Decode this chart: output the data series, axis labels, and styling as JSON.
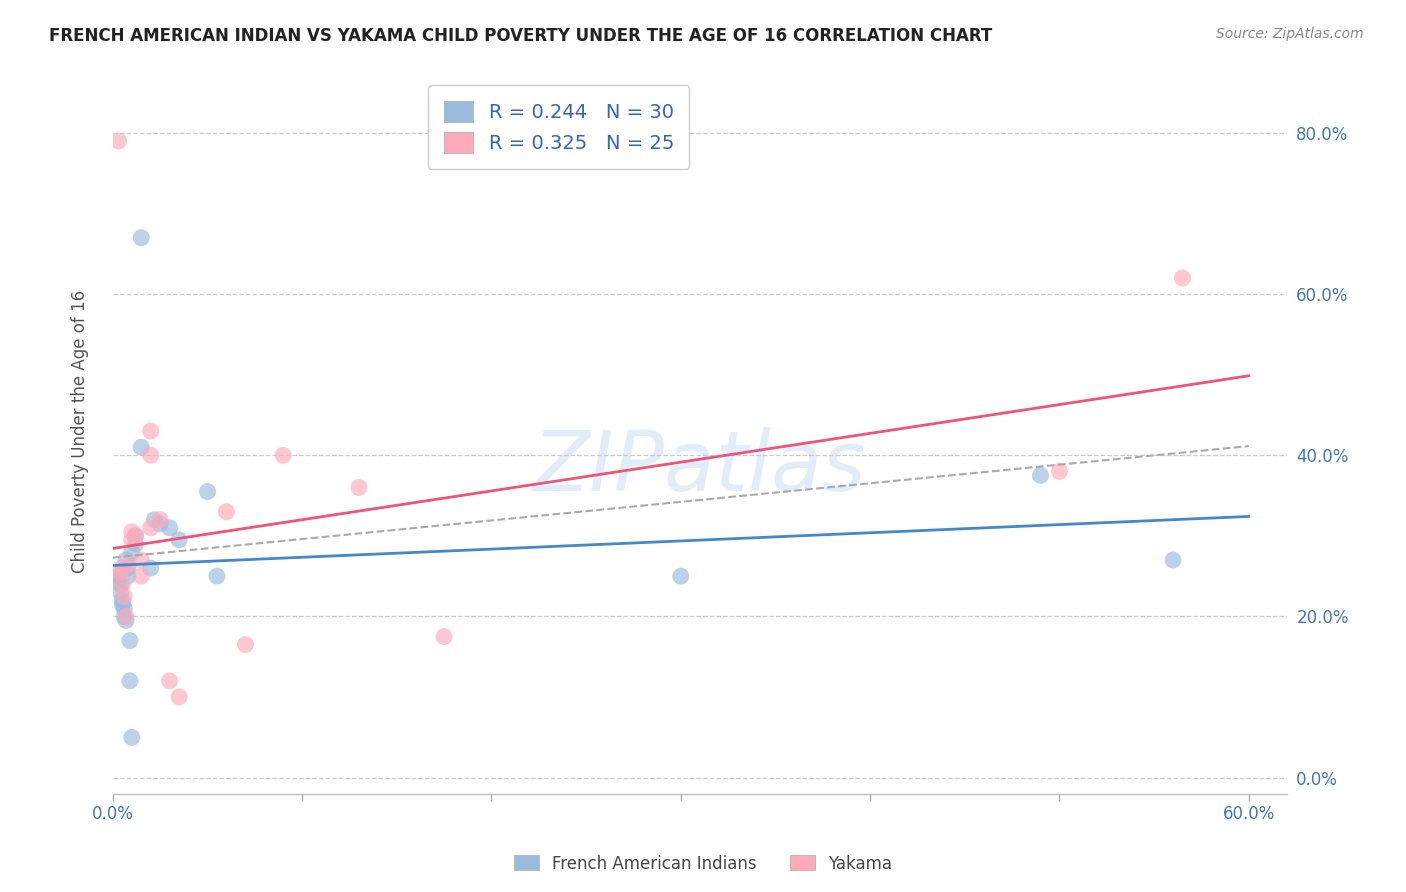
{
  "title": "FRENCH AMERICAN INDIAN VS YAKAMA CHILD POVERTY UNDER THE AGE OF 16 CORRELATION CHART",
  "source": "Source: ZipAtlas.com",
  "ylabel": "Child Poverty Under the Age of 16",
  "legend_label1": "French American Indians",
  "legend_label2": "Yakama",
  "R1": 0.244,
  "N1": 30,
  "R2": 0.325,
  "N2": 25,
  "color_blue": "#99BBDD",
  "color_pink": "#FFAABB",
  "line_color_blue": "#4488CC",
  "line_color_pink": "#EE5577",
  "watermark": "ZIPatlas",
  "xlim": [
    0.0,
    0.62
  ],
  "ylim": [
    -0.02,
    0.88
  ],
  "x_ticks": [
    0.0,
    0.6
  ],
  "x_tick_labels": [
    "0.0%",
    "60.0%"
  ],
  "y_ticks": [
    0.0,
    0.2,
    0.4,
    0.6,
    0.8
  ],
  "y_tick_labels": [
    "0.0%",
    "20.0%",
    "40.0%",
    "60.0%",
    "80.0%"
  ],
  "blue_x": [
    0.003,
    0.003,
    0.004,
    0.004,
    0.005,
    0.005,
    0.006,
    0.006,
    0.007,
    0.007,
    0.008,
    0.008,
    0.009,
    0.009,
    0.01,
    0.01,
    0.012,
    0.012,
    0.015,
    0.015,
    0.02,
    0.022,
    0.025,
    0.03,
    0.035,
    0.05,
    0.055,
    0.3,
    0.49,
    0.56
  ],
  "blue_y": [
    0.25,
    0.245,
    0.24,
    0.23,
    0.22,
    0.215,
    0.21,
    0.2,
    0.195,
    0.27,
    0.26,
    0.25,
    0.17,
    0.12,
    0.05,
    0.28,
    0.29,
    0.3,
    0.41,
    0.67,
    0.26,
    0.32,
    0.315,
    0.31,
    0.295,
    0.355,
    0.25,
    0.25,
    0.375,
    0.27
  ],
  "pink_x": [
    0.003,
    0.004,
    0.005,
    0.005,
    0.006,
    0.007,
    0.008,
    0.01,
    0.01,
    0.012,
    0.015,
    0.015,
    0.02,
    0.02,
    0.02,
    0.025,
    0.03,
    0.035,
    0.06,
    0.07,
    0.09,
    0.13,
    0.175,
    0.5,
    0.565
  ],
  "pink_y": [
    0.79,
    0.255,
    0.26,
    0.24,
    0.225,
    0.2,
    0.265,
    0.295,
    0.305,
    0.3,
    0.27,
    0.25,
    0.43,
    0.4,
    0.31,
    0.32,
    0.12,
    0.1,
    0.33,
    0.165,
    0.4,
    0.36,
    0.175,
    0.38,
    0.62
  ]
}
